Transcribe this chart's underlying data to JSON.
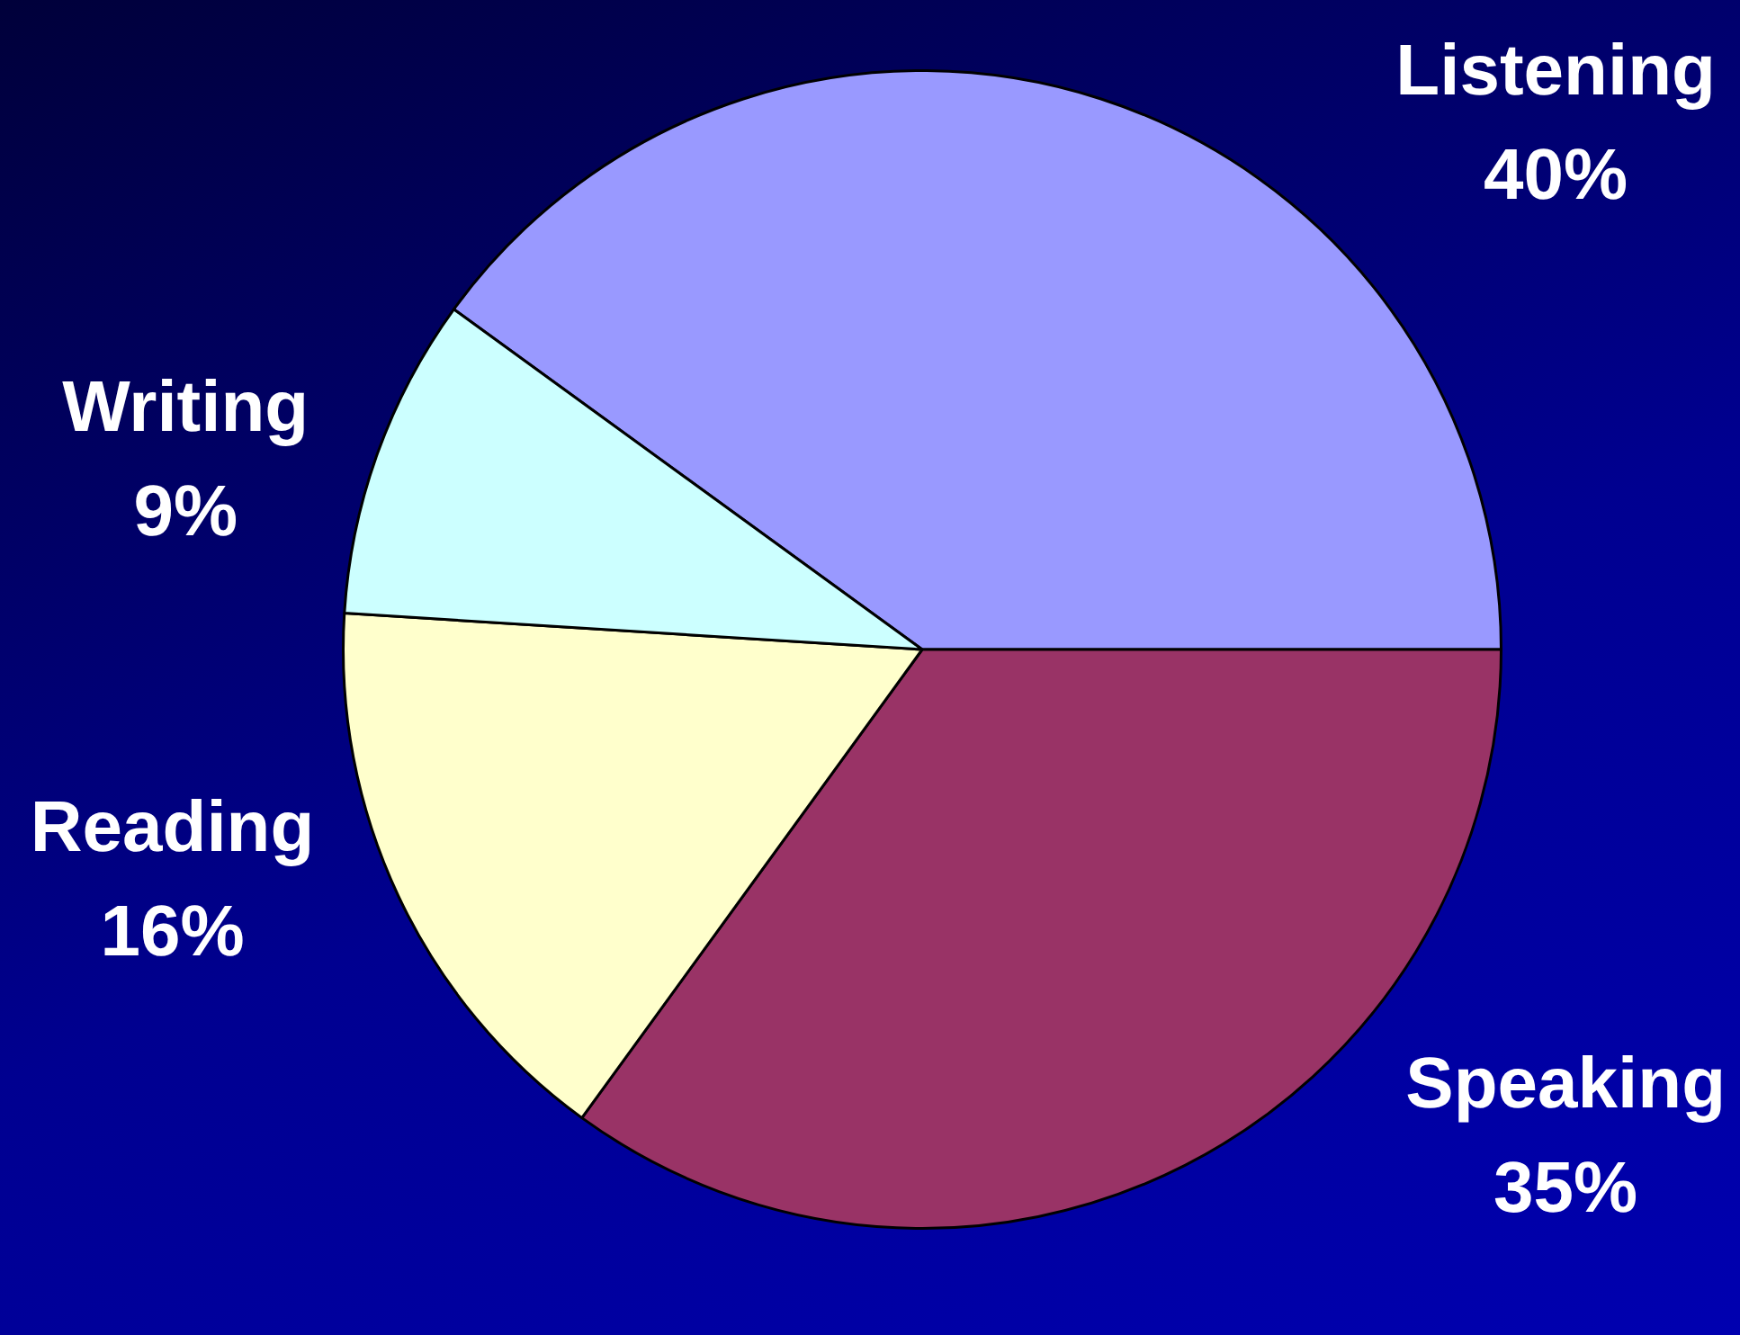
{
  "chart_data": {
    "type": "pie",
    "categories": [
      "Listening",
      "Speaking",
      "Reading",
      "Writing"
    ],
    "values": [
      40,
      35,
      16,
      9
    ],
    "colors": [
      "#9999ff",
      "#993366",
      "#ffffcc",
      "#ccffff"
    ],
    "value_labels": [
      "40%",
      "35%",
      "16%",
      "9%"
    ],
    "legend": false
  }
}
